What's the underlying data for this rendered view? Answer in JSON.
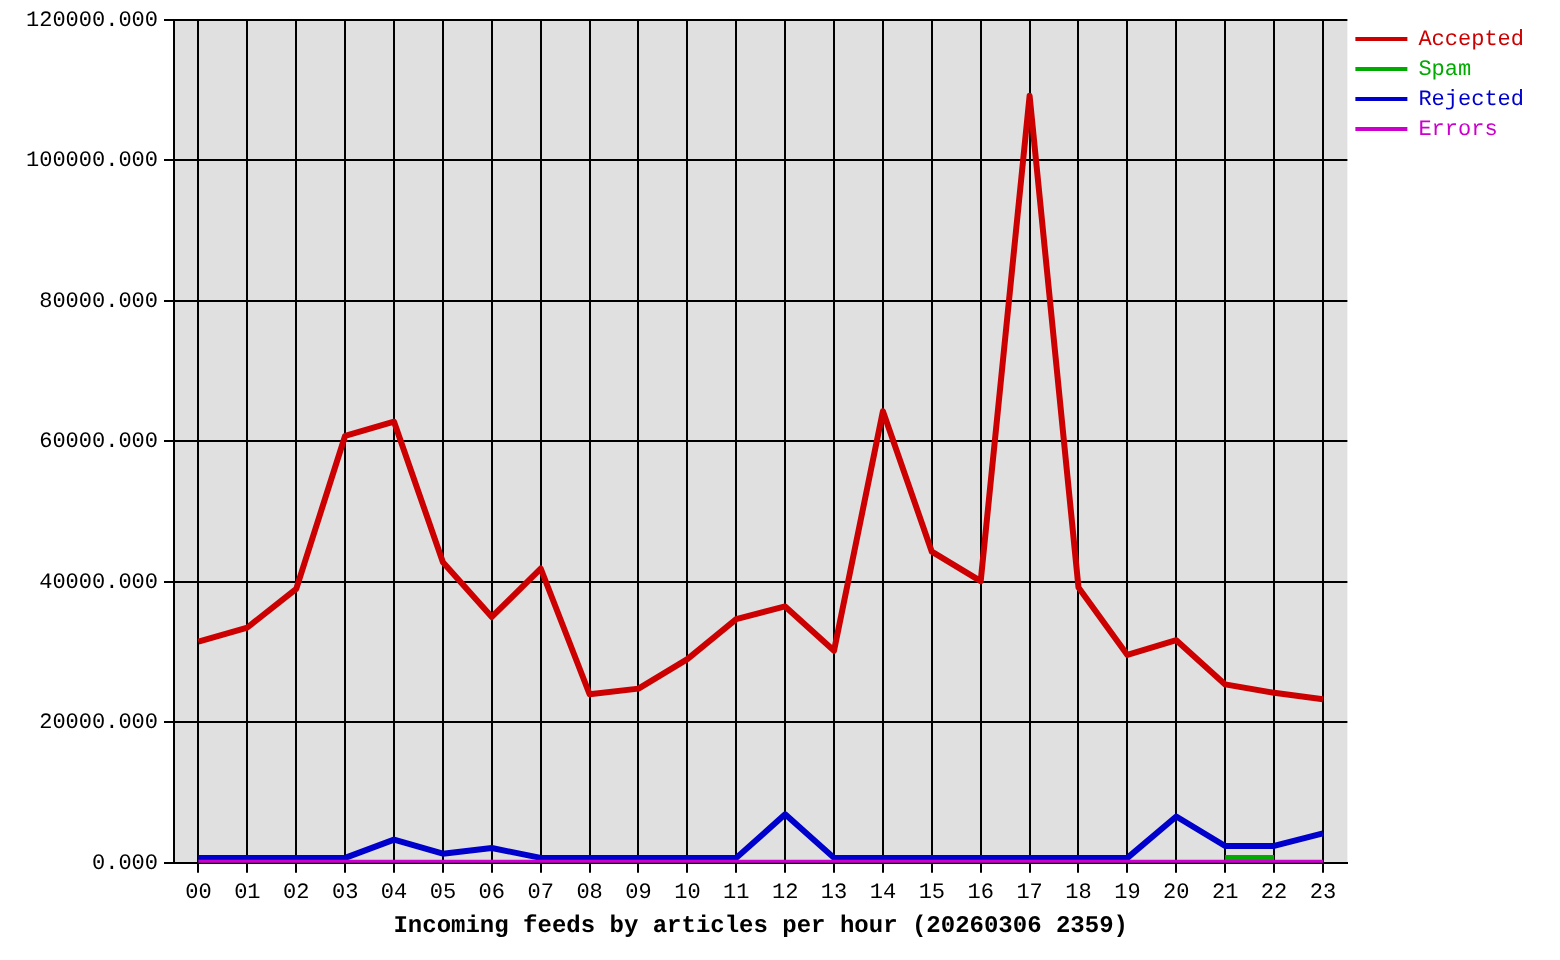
{
  "chart_data": {
    "type": "line",
    "xlabel": "Incoming feeds by articles per hour (20260306 2359)",
    "categories": [
      "00",
      "01",
      "02",
      "03",
      "04",
      "05",
      "06",
      "07",
      "08",
      "09",
      "10",
      "11",
      "12",
      "13",
      "14",
      "15",
      "16",
      "17",
      "18",
      "19",
      "20",
      "21",
      "22",
      "23"
    ],
    "series": [
      {
        "name": "Accepted",
        "color": "#cc0000",
        "values": [
          31500,
          33500,
          39000,
          60800,
          62800,
          42800,
          35000,
          41900,
          24000,
          24800,
          29000,
          34700,
          36500,
          30200,
          64300,
          44300,
          40100,
          109200,
          39200,
          29600,
          31700,
          25400,
          24200,
          23300
        ]
      },
      {
        "name": "Spam",
        "color": "#00aa00",
        "values": [
          null,
          null,
          null,
          null,
          null,
          null,
          null,
          null,
          null,
          null,
          null,
          null,
          null,
          null,
          null,
          null,
          null,
          null,
          null,
          null,
          null,
          700,
          700,
          null
        ]
      },
      {
        "name": "Rejected",
        "color": "#0000cc",
        "values": [
          700,
          700,
          700,
          700,
          3300,
          1300,
          2100,
          700,
          700,
          700,
          700,
          700,
          6900,
          700,
          700,
          700,
          700,
          700,
          700,
          700,
          6600,
          2400,
          2400,
          4200
        ]
      },
      {
        "name": "Errors",
        "color": "#cc00cc",
        "values": [
          0,
          0,
          0,
          0,
          0,
          0,
          0,
          0,
          0,
          0,
          0,
          0,
          0,
          0,
          0,
          0,
          0,
          0,
          0,
          0,
          0,
          0,
          0,
          0
        ]
      }
    ],
    "ylim": [
      0,
      120000
    ],
    "yticks": [
      {
        "value": 0,
        "label": "0.000"
      },
      {
        "value": 20000,
        "label": "20000.000"
      },
      {
        "value": 40000,
        "label": "40000.000"
      },
      {
        "value": 60000,
        "label": "60000.000"
      },
      {
        "value": 80000,
        "label": "80000.000"
      },
      {
        "value": 100000,
        "label": "100000.000"
      },
      {
        "value": 120000,
        "label": "120000.000"
      }
    ],
    "grid": true,
    "legend": "top right",
    "marker": "none",
    "line_style": "solid"
  }
}
